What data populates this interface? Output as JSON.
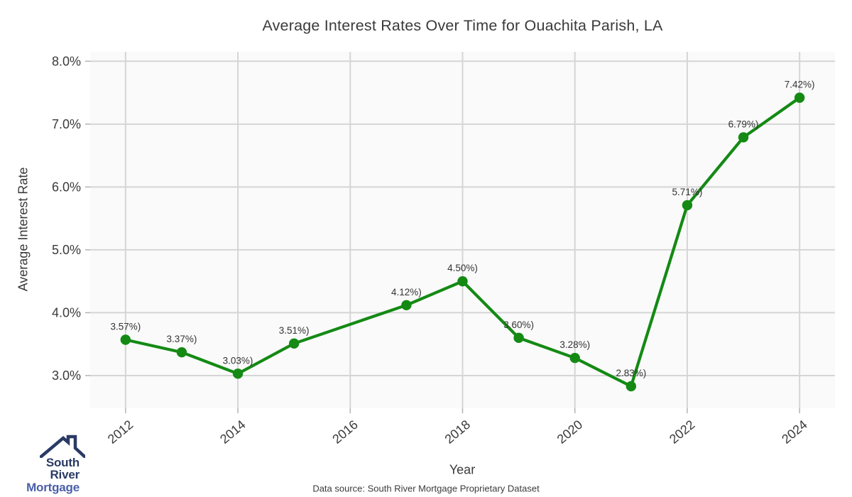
{
  "page": {
    "footer_text": "Data source: South River Mortgage Proprietary Dataset"
  },
  "logo": {
    "line1": "South River",
    "line2": "Mortgage",
    "color_primary": "#2b3a64",
    "color_secondary": "#4a5ea8"
  },
  "chart_data": {
    "type": "line",
    "title": "Average Interest Rates Over Time for Ouachita Parish, LA",
    "xlabel": "Year",
    "ylabel": "Average Interest Rate",
    "x": [
      2012,
      2013,
      2014,
      2015,
      2017,
      2018,
      2019,
      2020,
      2021,
      2022,
      2023,
      2024
    ],
    "values": [
      3.57,
      3.37,
      3.03,
      3.51,
      4.12,
      4.5,
      3.6,
      3.28,
      2.83,
      5.71,
      6.79,
      7.42
    ],
    "point_labels": [
      "3.57%)",
      "3.37%)",
      "3.03%)",
      "3.51%)",
      "4.12%)",
      "4.50%)",
      "3.60%)",
      "3.28%)",
      "2.83%)",
      "5.71%)",
      "6.79%)",
      "7.42%)"
    ],
    "x_tick_values": [
      2012,
      2014,
      2016,
      2018,
      2020,
      2022,
      2024
    ],
    "x_tick_labels": [
      "2012",
      "2014",
      "2016",
      "2018",
      "2020",
      "2022",
      "2024"
    ],
    "y_tick_values": [
      8,
      7,
      6,
      5,
      4,
      3
    ],
    "y_tick_labels": [
      "8.0%",
      "7.0%",
      "6.0%",
      "5.0%",
      "4.0%",
      "3.0%"
    ],
    "xlim": [
      2011.37,
      2024.63
    ],
    "ylim": [
      2.48,
      8.15
    ],
    "grid": true,
    "legend": "none",
    "line_color": "#148a14",
    "marker_color": "#148a14",
    "plot_bg": "#fafafa",
    "grid_color": "#d5d5d5",
    "tick_color": "#b3b3b3",
    "text_color": "#3a3a3a",
    "annotation_color": "#333333"
  }
}
